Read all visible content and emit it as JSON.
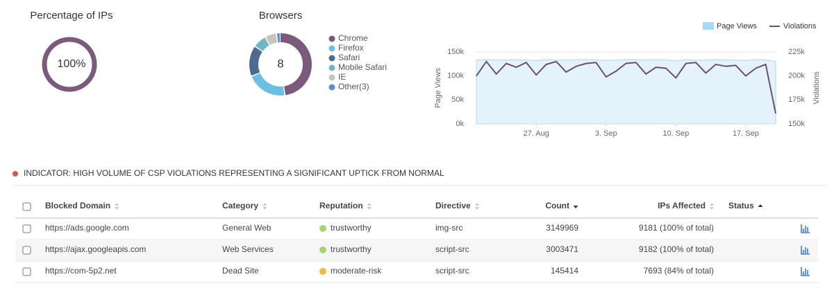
{
  "chart_data": [
    {
      "type": "donut",
      "title": "Percentage of IPs",
      "values": [
        100
      ],
      "value_labels": [
        "100%"
      ],
      "color": "#7b5b7b"
    },
    {
      "type": "donut",
      "title": "Browsers",
      "total": 8,
      "categories": [
        "Chrome",
        "Firefox",
        "Safari",
        "Mobile Safari",
        "IE",
        "Other(3)"
      ],
      "values": [
        48,
        21,
        16,
        7,
        6,
        2
      ],
      "colors": [
        "#7b5b7b",
        "#6cbfe3",
        "#4e6a8e",
        "#72b6c6",
        "#c9c4b9",
        "#5b8ed6"
      ]
    },
    {
      "type": "area-line",
      "x": [
        "21. Aug",
        "22. Aug",
        "23. Aug",
        "24. Aug",
        "25. Aug",
        "26. Aug",
        "27. Aug",
        "28. Aug",
        "29. Aug",
        "30. Aug",
        "31. Aug",
        "1. Sep",
        "2. Sep",
        "3. Sep",
        "4. Sep",
        "5. Sep",
        "6. Sep",
        "7. Sep",
        "8. Sep",
        "9. Sep",
        "10. Sep",
        "11. Sep",
        "12. Sep",
        "13. Sep",
        "14. Sep",
        "15. Sep",
        "16. Sep",
        "17. Sep",
        "18. Sep",
        "19. Sep",
        "20. Sep"
      ],
      "xticks": [
        "27. Aug",
        "3. Sep",
        "10. Sep",
        "17. Sep"
      ],
      "ylabel": "Page Views",
      "y2label": "Violations",
      "ylim": [
        0,
        150000
      ],
      "yticks": [
        {
          "value": 0,
          "label": "0k"
        },
        {
          "value": 50000,
          "label": "50k"
        },
        {
          "value": 100000,
          "label": "100k"
        },
        {
          "value": 150000,
          "label": "150k"
        }
      ],
      "y2lim": [
        150000,
        225000
      ],
      "y2ticks": [
        {
          "value": 150000,
          "label": "150k"
        },
        {
          "value": 175000,
          "label": "175k"
        },
        {
          "value": 200000,
          "label": "200k"
        },
        {
          "value": 225000,
          "label": "225k"
        }
      ],
      "grid": true,
      "series": [
        {
          "name": "Page Views",
          "color": "#a9d9f0",
          "values": [
            133000,
            134000,
            133000,
            133000,
            134000,
            133000,
            132000,
            134000,
            133000,
            133000,
            134000,
            134000,
            133000,
            132000,
            133000,
            134000,
            134000,
            133000,
            134000,
            133000,
            132000,
            134000,
            133000,
            133000,
            134000,
            133000,
            133000,
            132000,
            134000,
            133000,
            130000
          ]
        },
        {
          "name": "Violations",
          "color": "#6b4f6b",
          "axis": "y2",
          "values": [
            200000,
            215000,
            202000,
            213000,
            209000,
            214000,
            201000,
            212000,
            215000,
            204000,
            210000,
            213000,
            214000,
            199000,
            205000,
            213000,
            214000,
            202000,
            209000,
            208000,
            198000,
            213000,
            214000,
            203000,
            212000,
            210000,
            211000,
            200000,
            208000,
            212000,
            161000
          ]
        }
      ]
    }
  ],
  "indicator": {
    "text": "INDICATOR: HIGH VOLUME OF CSP VIOLATIONS REPRESENTING A SIGNIFICANT UPTICK FROM NORMAL",
    "color": "#d9534f"
  },
  "table": {
    "headers": [
      "Blocked Domain",
      "Category",
      "Reputation",
      "Directive",
      "Count",
      "IPs Affected",
      "Status"
    ],
    "rows": [
      {
        "domain": "https://ads.google.com",
        "category": "General Web",
        "reputation": "trustworthy",
        "reputation_color": "#a6d66b",
        "directive": "img-src",
        "count": 3149969,
        "ips_affected": "9181 (100% of total)"
      },
      {
        "domain": "https://ajax.googleapis.com",
        "category": "Web Services",
        "reputation": "trustworthy",
        "reputation_color": "#a6d66b",
        "directive": "script-src",
        "count": 3003471,
        "ips_affected": "9182 (100% of total)"
      },
      {
        "domain": "https://com-5p2.net",
        "category": "Dead Site",
        "reputation": "moderate-risk",
        "reputation_color": "#f1b94b",
        "directive": "script-src",
        "count": 145414,
        "ips_affected": "7693 (84% of total)"
      }
    ]
  }
}
